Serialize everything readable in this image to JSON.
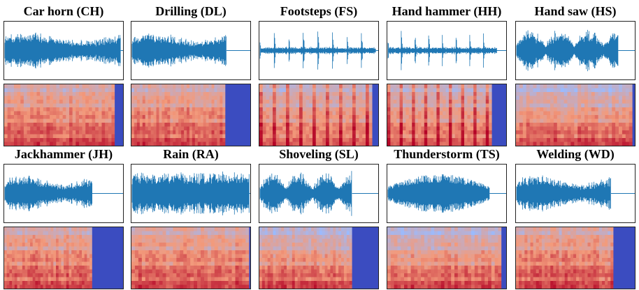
{
  "panels": [
    {
      "title": "Car horn (CH)",
      "signal_end": 0.98,
      "pad_start": 0.93,
      "style": "steady"
    },
    {
      "title": "Drilling (DL)",
      "signal_end": 0.8,
      "pad_start": 0.79,
      "style": "steady"
    },
    {
      "title": "Footsteps (FS)",
      "signal_end": 0.98,
      "pad_start": 0.95,
      "style": "impulsive"
    },
    {
      "title": "Hand hammer (HH)",
      "signal_end": 0.92,
      "pad_start": 0.88,
      "style": "impulsive"
    },
    {
      "title": "Hand saw (HS)",
      "signal_end": 0.86,
      "pad_start": 0.98,
      "style": "bursty"
    },
    {
      "title": "Jackhammer (JH)",
      "signal_end": 0.74,
      "pad_start": 0.74,
      "style": "steady"
    },
    {
      "title": "Rain (RA)",
      "signal_end": 0.99,
      "pad_start": 0.99,
      "style": "dense"
    },
    {
      "title": "Shoveling (SL)",
      "signal_end": 0.78,
      "pad_start": 0.78,
      "style": "bursty"
    },
    {
      "title": "Thunderstorm (TS)",
      "signal_end": 0.86,
      "pad_start": 0.96,
      "style": "swell"
    },
    {
      "title": "Welding (WD)",
      "signal_end": 0.8,
      "pad_start": 0.82,
      "style": "steady"
    }
  ],
  "colors": {
    "waveform": "#1f77b4",
    "spec_high": "#b40426",
    "spec_mid": "#f39a7b",
    "spec_low": "#9abbff",
    "spec_pad": "#3b4cc0"
  }
}
